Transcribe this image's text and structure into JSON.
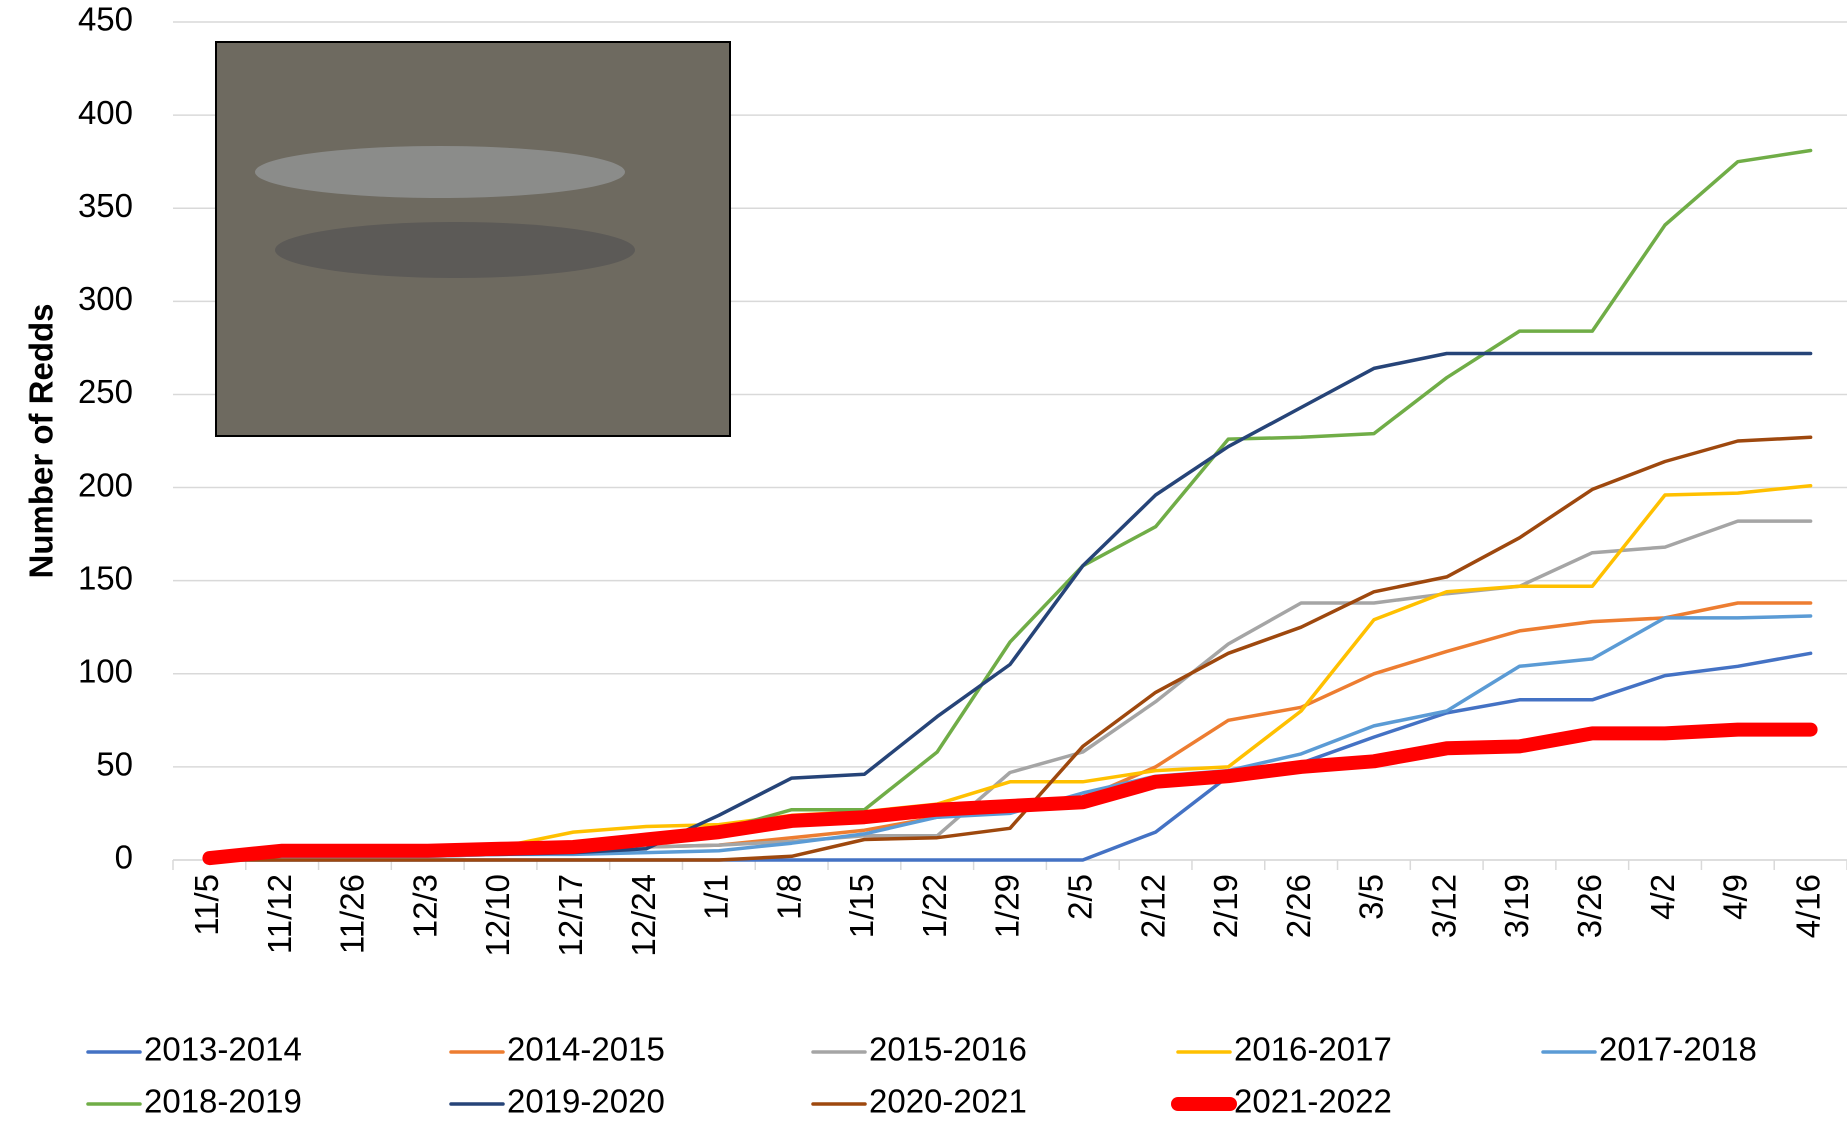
{
  "chart_data": {
    "type": "line",
    "ylabel": "Number of Redds",
    "categories": [
      "11/5",
      "11/12",
      "11/26",
      "12/3",
      "12/10",
      "12/17",
      "12/24",
      "1/1",
      "1/8",
      "1/15",
      "1/22",
      "1/29",
      "2/5",
      "2/12",
      "2/19",
      "2/26",
      "3/5",
      "3/12",
      "3/19",
      "3/26",
      "4/2",
      "4/9",
      "4/16"
    ],
    "ylim": [
      0,
      450
    ],
    "yticks": [
      0,
      50,
      100,
      150,
      200,
      250,
      300,
      350,
      400,
      450
    ],
    "grid": true,
    "series": [
      {
        "name": "2013-2014",
        "color": "#4472c4",
        "values": [
          0,
          0,
          0,
          0,
          0,
          0,
          0,
          0,
          0,
          0,
          0,
          0,
          0,
          15,
          45,
          52,
          66,
          79,
          86,
          86,
          99,
          104,
          111
        ]
      },
      {
        "name": "2014-2015",
        "color": "#ed7d31",
        "values": [
          0,
          2,
          2,
          2,
          3,
          4,
          7,
          8,
          12,
          16,
          23,
          27,
          33,
          50,
          75,
          82,
          100,
          112,
          123,
          128,
          130,
          138,
          138
        ]
      },
      {
        "name": "2015-2016",
        "color": "#a5a5a5",
        "values": [
          0,
          2,
          2,
          2,
          3,
          4,
          7,
          8,
          10,
          13,
          13,
          47,
          58,
          85,
          116,
          138,
          138,
          143,
          147,
          165,
          168,
          182,
          182
        ]
      },
      {
        "name": "2016-2017",
        "color": "#ffc000",
        "values": [
          0,
          3,
          4,
          5,
          7,
          15,
          18,
          19,
          24,
          26,
          30,
          42,
          42,
          48,
          50,
          80,
          129,
          144,
          147,
          147,
          196,
          197,
          201
        ]
      },
      {
        "name": "2017-2018",
        "color": "#5b9bd5",
        "values": [
          0,
          2,
          2,
          2,
          3,
          3,
          4,
          5,
          9,
          14,
          23,
          25,
          36,
          45,
          48,
          57,
          72,
          80,
          104,
          108,
          130,
          130,
          131
        ]
      },
      {
        "name": "2018-2019",
        "color": "#70ad47",
        "values": [
          0,
          3,
          3,
          3,
          4,
          5,
          10,
          16,
          27,
          27,
          58,
          117,
          158,
          179,
          226,
          227,
          229,
          259,
          284,
          284,
          341,
          375,
          381
        ]
      },
      {
        "name": "2019-2020",
        "color": "#264478",
        "values": [
          0,
          3,
          3,
          3,
          3,
          4,
          6,
          24,
          44,
          46,
          77,
          105,
          158,
          196,
          222,
          243,
          264,
          272,
          272,
          272,
          272,
          272,
          272
        ]
      },
      {
        "name": "2020-2021",
        "color": "#9e480e",
        "values": [
          0,
          0,
          0,
          0,
          0,
          0,
          0,
          0,
          2,
          11,
          12,
          17,
          61,
          90,
          111,
          125,
          144,
          152,
          173,
          199,
          214,
          225,
          227
        ]
      },
      {
        "name": "2021-2022",
        "color": "#ff0000",
        "values": [
          1,
          5,
          5,
          5,
          6,
          7,
          11,
          15,
          21,
          23,
          27,
          29,
          31,
          42,
          45,
          50,
          53,
          60,
          61,
          68,
          68,
          70,
          70
        ]
      }
    ]
  }
}
